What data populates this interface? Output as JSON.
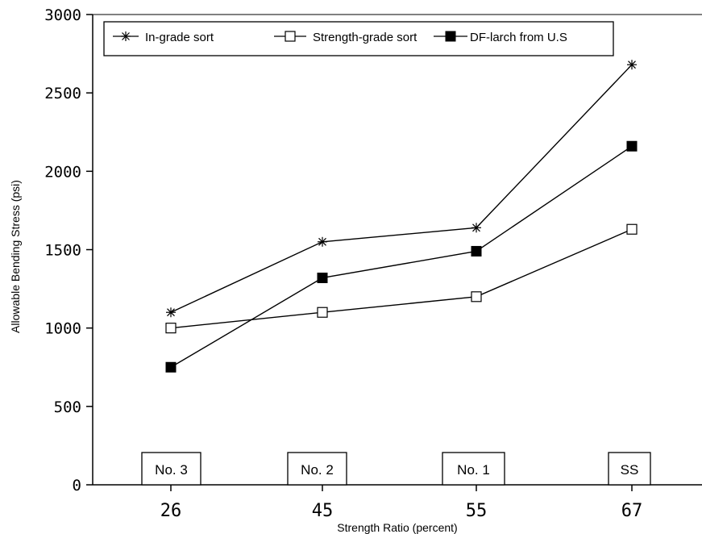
{
  "chart_data": {
    "type": "line",
    "title": "",
    "xlabel": "Strength Ratio (percent)",
    "ylabel": "Allowable Bending Stress (psi)",
    "x": [
      26,
      45,
      55,
      67
    ],
    "x_tick_labels": [
      "26",
      "45",
      "55",
      "67"
    ],
    "ylim": [
      0,
      3000
    ],
    "y_ticks": [
      0,
      500,
      1000,
      1500,
      2000,
      2500,
      3000
    ],
    "grid": false,
    "legend_position": "top",
    "grade_labels": [
      "No. 3",
      "No. 2",
      "No. 1",
      "SS"
    ],
    "series": [
      {
        "name": "In-grade sort",
        "marker": "asterisk",
        "color": "#000000",
        "values": [
          1100,
          1550,
          1640,
          2680
        ]
      },
      {
        "name": "Strength-grade sort",
        "marker": "open-square",
        "color": "#000000",
        "values": [
          1000,
          1100,
          1200,
          1630
        ]
      },
      {
        "name": "DF-larch from U.S",
        "marker": "filled-square",
        "color": "#000000",
        "values": [
          750,
          1320,
          1490,
          2160
        ]
      }
    ]
  }
}
